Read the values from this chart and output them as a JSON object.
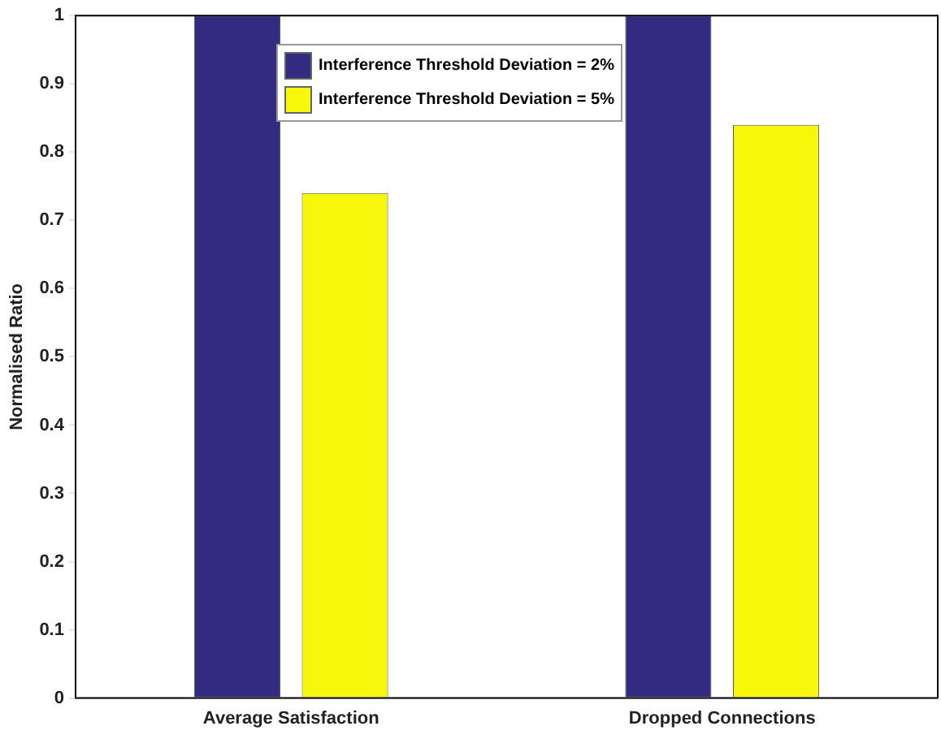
{
  "chart_data": {
    "type": "bar",
    "ylabel": "Normalised Ratio",
    "categories": [
      "Average Satisfaction",
      "Dropped Connections"
    ],
    "series": [
      {
        "name": "Interference Threshold Deviation = 2%",
        "color": "#332a82",
        "values": [
          1,
          1
        ]
      },
      {
        "name": "Interference Threshold Deviation = 5%",
        "color": "#f7f70c",
        "values": [
          0.74,
          0.84
        ]
      }
    ],
    "ylim": [
      0,
      1
    ],
    "yticks": [
      0,
      0.1,
      0.2,
      0.3,
      0.4,
      0.5,
      0.6,
      0.7,
      0.8,
      0.9,
      1
    ],
    "grid": false,
    "legend": "top"
  }
}
